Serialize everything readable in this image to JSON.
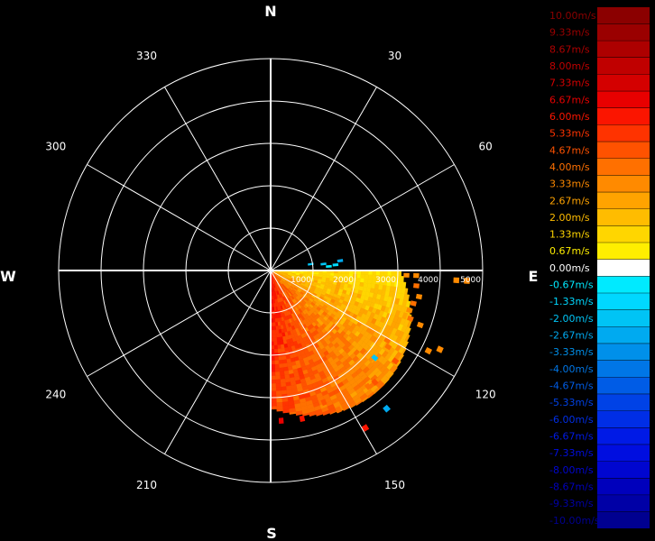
{
  "chart_data": {
    "type": "polar-ppi-velocity",
    "cardinals": [
      "N",
      "E",
      "S",
      "W"
    ],
    "degree_labels": [
      "30",
      "60",
      "120",
      "150",
      "210",
      "240",
      "300",
      "330"
    ],
    "range_labels": [
      "1000",
      "2000",
      "3000",
      "4000",
      "5000"
    ],
    "range_max": 5000,
    "sector_coverage_deg": [
      90,
      180
    ],
    "legend": [
      {
        "label": "10.00m/s",
        "color": "#8b0000"
      },
      {
        "label": "9.33m/s",
        "color": "#9a0000"
      },
      {
        "label": "8.67m/s",
        "color": "#ad0000"
      },
      {
        "label": "8.00m/s",
        "color": "#c00000"
      },
      {
        "label": "7.33m/s",
        "color": "#d40000"
      },
      {
        "label": "6.67m/s",
        "color": "#e80000"
      },
      {
        "label": "6.00m/s",
        "color": "#fb1500"
      },
      {
        "label": "5.33m/s",
        "color": "#ff3300"
      },
      {
        "label": "4.67m/s",
        "color": "#ff5200"
      },
      {
        "label": "4.00m/s",
        "color": "#ff7000"
      },
      {
        "label": "3.33m/s",
        "color": "#ff8a00"
      },
      {
        "label": "2.67m/s",
        "color": "#ffa300"
      },
      {
        "label": "2.00m/s",
        "color": "#ffbc00"
      },
      {
        "label": "1.33m/s",
        "color": "#ffd600"
      },
      {
        "label": "0.67m/s",
        "color": "#ffee00"
      },
      {
        "label": "0.00m/s",
        "color": "#ffffff"
      },
      {
        "label": "-0.67m/s",
        "color": "#00eaff"
      },
      {
        "label": "-1.33m/s",
        "color": "#00d8ff"
      },
      {
        "label": "-2.00m/s",
        "color": "#00c4f5"
      },
      {
        "label": "-2.67m/s",
        "color": "#00aaf0"
      },
      {
        "label": "-3.33m/s",
        "color": "#0090ea"
      },
      {
        "label": "-4.00m/s",
        "color": "#0076e6"
      },
      {
        "label": "-4.67m/s",
        "color": "#005ce6"
      },
      {
        "label": "-5.33m/s",
        "color": "#0042e6"
      },
      {
        "label": "-6.00m/s",
        "color": "#002ee6"
      },
      {
        "label": "-6.67m/s",
        "color": "#001ae6"
      },
      {
        "label": "-7.33m/s",
        "color": "#000ee0"
      },
      {
        "label": "-8.00m/s",
        "color": "#0006d0"
      },
      {
        "label": "-8.67m/s",
        "color": "#0000bc"
      },
      {
        "label": "-9.33m/s",
        "color": "#0000a6"
      },
      {
        "label": "-10.00m/s",
        "color": "#000090"
      }
    ],
    "returns": [
      {
        "az": 92,
        "r": 3150,
        "v": 3.3
      },
      {
        "az": 92,
        "r": 3380,
        "v": 3.3
      },
      {
        "az": 93,
        "r": 4330,
        "v": 3.3
      },
      {
        "az": 93,
        "r": 4580,
        "v": 3.3
      },
      {
        "az": 96,
        "r": 3400,
        "v": 4.0
      },
      {
        "az": 100,
        "r": 3500,
        "v": 3.3
      },
      {
        "az": 103,
        "r": 3400,
        "v": 4.0
      },
      {
        "az": 106,
        "r": 3350,
        "v": 3.3
      },
      {
        "az": 109,
        "r": 3430,
        "v": 4.0
      },
      {
        "az": 110,
        "r": 3700,
        "v": 3.3
      },
      {
        "az": 115,
        "r": 4350,
        "v": 3.3
      },
      {
        "az": 117,
        "r": 4120,
        "v": 3.3
      },
      {
        "az": 121,
        "r": 3150,
        "v": 4.0
      },
      {
        "az": 123,
        "r": 3250,
        "v": 4.0
      },
      {
        "az": 126,
        "r": 3580,
        "v": 4.7
      },
      {
        "az": 130,
        "r": 3150,
        "v": -2.0
      },
      {
        "az": 132,
        "r": 3250,
        "v": 3.3
      },
      {
        "az": 137,
        "r": 3550,
        "v": 4.7
      },
      {
        "az": 140,
        "r": 3520,
        "v": 4.0
      },
      {
        "az": 140,
        "r": 4200,
        "v": -2.7
      },
      {
        "az": 149,
        "r": 4280,
        "v": 6.0
      },
      {
        "az": 154,
        "r": 3600,
        "v": 4.0
      },
      {
        "az": 158,
        "r": 3300,
        "v": 4.7
      },
      {
        "az": 168,
        "r": 3520,
        "v": 6.0
      },
      {
        "az": 176,
        "r": 3500,
        "v": 6.7
      },
      {
        "az": 81,
        "r": 900,
        "v": -2.0
      },
      {
        "az": 83,
        "r": 1200,
        "v": -2.0
      },
      {
        "az": 85,
        "r": 1480,
        "v": -1.3
      },
      {
        "az": 86,
        "r": 1320,
        "v": -0.7
      },
      {
        "az": 82,
        "r": 1600,
        "v": -2.7
      }
    ]
  }
}
